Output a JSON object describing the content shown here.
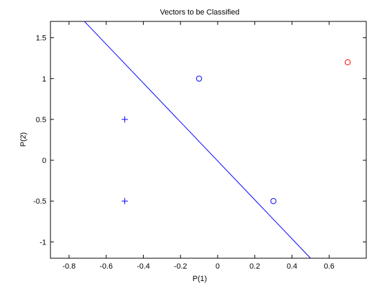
{
  "chart_data": {
    "type": "scatter",
    "title": "Vectors to be Classified",
    "xlabel": "P(1)",
    "ylabel": "P(2)",
    "xlim": [
      -0.9,
      0.8
    ],
    "ylim": [
      -1.2,
      1.7
    ],
    "grid": false,
    "x_ticks": [
      -0.8,
      -0.6,
      -0.4,
      -0.2,
      0,
      0.2,
      0.4,
      0.6
    ],
    "x_tick_labels": [
      "-0.8",
      "-0.6",
      "-0.4",
      "-0.2",
      "0",
      "0.2",
      "0.4",
      "0.6"
    ],
    "y_ticks": [
      -1,
      -0.5,
      0,
      0.5,
      1,
      1.5
    ],
    "y_tick_labels": [
      "-1",
      "-0.5",
      "0",
      "0.5",
      "1",
      "1.5"
    ],
    "series": [
      {
        "marker": "plus",
        "color": "#0000ff",
        "points": [
          [
            -0.5,
            0.5
          ],
          [
            -0.5,
            -0.5
          ]
        ]
      },
      {
        "marker": "circle",
        "color": "#0000ff",
        "points": [
          [
            -0.1,
            1.0
          ],
          [
            0.3,
            -0.5
          ]
        ]
      },
      {
        "marker": "circle",
        "color": "#ff0000",
        "points": [
          [
            0.7,
            1.2
          ]
        ]
      }
    ],
    "line": {
      "color": "#0000ff",
      "points": [
        [
          -0.717,
          1.7
        ],
        [
          0.5,
          -1.2
        ]
      ]
    }
  }
}
